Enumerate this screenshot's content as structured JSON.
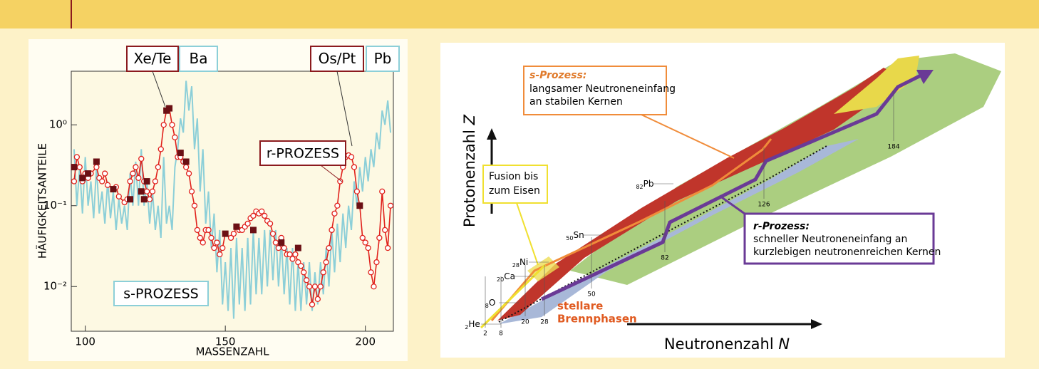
{
  "chart_data": {
    "type": "line",
    "yscale": "log",
    "ylabel": "HÄUFIGKEITSANTEILE",
    "xlabel": "MASSENZAHL",
    "xlim": [
      95,
      210
    ],
    "xticks": [
      100,
      150,
      200
    ],
    "ylim": [
      0.0028,
      4.6
    ],
    "yticks": [
      {
        "value": 0.01,
        "label": "10⁻²"
      },
      {
        "value": 0.1,
        "label": "10⁻¹"
      },
      {
        "value": 1,
        "label": "10⁰"
      }
    ],
    "series": [
      {
        "name": "s-PROZESS",
        "color": "#8ccfd8",
        "marker": "none",
        "x": [
          96,
          97,
          98,
          99,
          100,
          101,
          102,
          103,
          104,
          105,
          106,
          107,
          108,
          109,
          110,
          111,
          112,
          113,
          114,
          115,
          116,
          117,
          118,
          119,
          120,
          121,
          122,
          123,
          124,
          125,
          126,
          127,
          128,
          129,
          130,
          131,
          132,
          133,
          134,
          135,
          136,
          137,
          138,
          139,
          140,
          141,
          142,
          143,
          144,
          145,
          146,
          147,
          148,
          149,
          150,
          151,
          152,
          153,
          154,
          155,
          156,
          157,
          158,
          159,
          160,
          161,
          162,
          163,
          164,
          165,
          166,
          167,
          168,
          169,
          170,
          171,
          172,
          173,
          174,
          175,
          176,
          177,
          178,
          179,
          180,
          181,
          182,
          183,
          184,
          185,
          186,
          187,
          188,
          189,
          190,
          191,
          192,
          193,
          194,
          195,
          196,
          197,
          198,
          199,
          200,
          201,
          202,
          203,
          204,
          205,
          206,
          207,
          208,
          209
        ],
        "values": [
          0.5,
          0.1,
          0.3,
          0.08,
          0.4,
          0.1,
          0.2,
          0.07,
          0.3,
          0.08,
          0.15,
          0.06,
          0.2,
          0.07,
          0.15,
          0.05,
          0.12,
          0.06,
          0.1,
          0.05,
          0.25,
          0.1,
          0.35,
          0.1,
          0.5,
          0.1,
          0.2,
          0.06,
          0.15,
          0.05,
          0.1,
          0.04,
          0.4,
          0.06,
          0.1,
          0.05,
          0.3,
          0.5,
          1.2,
          0.8,
          3.5,
          1.5,
          3,
          0.5,
          1.2,
          0.15,
          0.5,
          0.06,
          0.15,
          0.03,
          0.08,
          0.015,
          0.05,
          0.006,
          0.02,
          0.005,
          0.03,
          0.004,
          0.04,
          0.006,
          0.03,
          0.005,
          0.04,
          0.006,
          0.05,
          0.008,
          0.04,
          0.008,
          0.05,
          0.01,
          0.05,
          0.012,
          0.05,
          0.01,
          0.04,
          0.008,
          0.03,
          0.006,
          0.03,
          0.005,
          0.02,
          0.005,
          0.02,
          0.006,
          0.02,
          0.005,
          0.015,
          0.006,
          0.02,
          0.008,
          0.03,
          0.01,
          0.05,
          0.015,
          0.06,
          0.02,
          0.08,
          0.03,
          0.1,
          0.05,
          0.2,
          0.1,
          0.3,
          0.15,
          0.4,
          0.2,
          0.5,
          0.3,
          0.8,
          0.5,
          1.5,
          1.0,
          2,
          0.8
        ]
      },
      {
        "name": "r-PROZESS",
        "color": "#e0201b",
        "marker": "circle",
        "x": [
          96,
          97,
          98,
          99,
          100,
          101,
          102,
          104,
          105,
          106,
          107,
          108,
          110,
          111,
          112,
          114,
          115,
          116,
          117,
          118,
          119,
          120,
          121,
          122,
          123,
          124,
          125,
          126,
          127,
          128,
          129,
          130,
          131,
          132,
          133,
          134,
          135,
          136,
          137,
          138,
          139,
          140,
          141,
          142,
          143,
          144,
          145,
          146,
          147,
          148,
          149,
          150,
          152,
          153,
          154,
          155,
          156,
          157,
          158,
          159,
          160,
          161,
          162,
          163,
          164,
          165,
          166,
          167,
          168,
          169,
          170,
          171,
          172,
          173,
          174,
          175,
          176,
          177,
          178,
          179,
          180,
          181,
          182,
          183,
          184,
          185,
          186,
          187,
          188,
          189,
          190,
          191,
          192,
          193,
          194,
          195,
          196,
          197,
          198,
          199,
          200,
          201,
          202,
          203,
          204,
          205,
          206,
          207,
          208,
          209
        ],
        "values": [
          0.2,
          0.4,
          0.3,
          0.2,
          0.25,
          0.22,
          0.25,
          0.3,
          0.22,
          0.2,
          0.25,
          0.18,
          0.16,
          0.17,
          0.13,
          0.11,
          0.12,
          0.2,
          0.25,
          0.3,
          0.22,
          0.38,
          0.2,
          0.15,
          0.12,
          0.15,
          0.2,
          0.3,
          0.5,
          1.0,
          1.5,
          1.6,
          1.0,
          0.7,
          0.4,
          0.4,
          0.35,
          0.3,
          0.25,
          0.15,
          0.1,
          0.05,
          0.04,
          0.035,
          0.05,
          0.05,
          0.04,
          0.03,
          0.035,
          0.025,
          0.03,
          0.045,
          0.04,
          0.045,
          0.055,
          0.05,
          0.05,
          0.055,
          0.06,
          0.07,
          0.075,
          0.085,
          0.08,
          0.085,
          0.075,
          0.065,
          0.06,
          0.045,
          0.035,
          0.03,
          0.04,
          0.03,
          0.025,
          0.025,
          0.022,
          0.025,
          0.02,
          0.018,
          0.015,
          0.012,
          0.01,
          0.006,
          0.01,
          0.007,
          0.01,
          0.015,
          0.02,
          0.03,
          0.05,
          0.08,
          0.1,
          0.2,
          0.3,
          0.4,
          0.42,
          0.4,
          0.3,
          0.15,
          0.1,
          0.04,
          0.035,
          0.03,
          0.015,
          0.01,
          0.02,
          0.04,
          0.15,
          0.05,
          0.03,
          0.1
        ]
      },
      {
        "color": "#6b1014",
        "marker": "square",
        "x": [
          96,
          99,
          101,
          104,
          110,
          116,
          120,
          121,
          122,
          129,
          130,
          134,
          136,
          150,
          154,
          160,
          170,
          176,
          198
        ],
        "values": [
          0.3,
          0.22,
          0.25,
          0.35,
          0.16,
          0.12,
          0.15,
          0.12,
          0.2,
          1.5,
          1.6,
          0.45,
          0.35,
          0.045,
          0.055,
          0.05,
          0.035,
          0.03,
          0.1
        ]
      }
    ],
    "annotations": [
      {
        "text": "Xe/Te",
        "color": "#8b1a1e"
      },
      {
        "text": "Ba",
        "color": "#8ccfd8"
      },
      {
        "text": "Os/Pt",
        "color": "#8b1a1e"
      },
      {
        "text": "Pb",
        "color": "#8ccfd8"
      }
    ]
  },
  "diagram": {
    "y_axis": {
      "text": "Protonenzahl",
      "symbol": "Z"
    },
    "x_axis": {
      "text": "Neutronenzahl",
      "symbol": "N"
    },
    "s_process": {
      "title": "s-Prozess:",
      "lines": [
        "langsamer Neutroneneinfang",
        "an stabilen Kernen"
      ]
    },
    "fusion": {
      "lines": [
        "Fusion bis",
        "zum Eisen"
      ]
    },
    "r_process": {
      "title": "r-Prozess:",
      "lines": [
        "schneller Neutroneneinfang an",
        "kurzlebigen neutronenreichen Kernen"
      ]
    },
    "stellar": {
      "lines": [
        "stellare",
        "Brennphasen"
      ]
    },
    "elements": [
      {
        "sub": "2",
        "symbol": "He"
      },
      {
        "sub": "8",
        "symbol": "O"
      },
      {
        "sub": "20",
        "symbol": "Ca"
      },
      {
        "sub": "28",
        "symbol": "Ni"
      },
      {
        "sub": "50",
        "symbol": "Sn"
      },
      {
        "sub": "82",
        "symbol": "Pb"
      }
    ],
    "magic_numbers": [
      "2",
      "8",
      "20",
      "28",
      "50",
      "82",
      "126",
      "184"
    ]
  }
}
